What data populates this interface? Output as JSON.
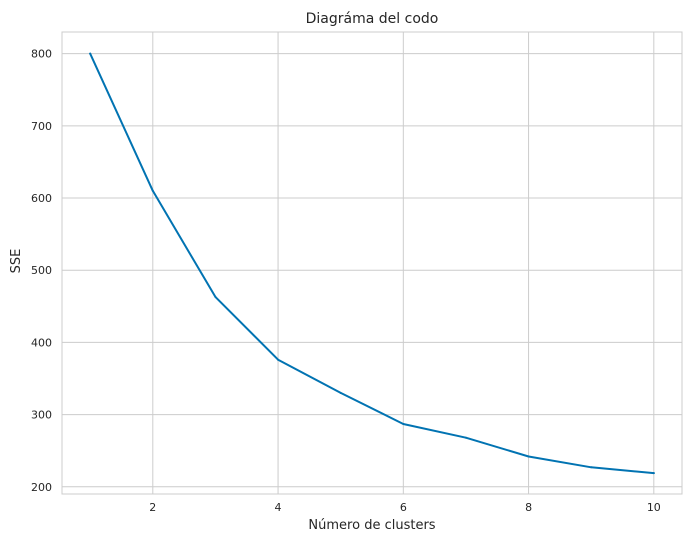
{
  "chart_data": {
    "type": "line",
    "title": "Diagráma del codo",
    "xlabel": "Número de clusters",
    "ylabel": "SSE",
    "x": [
      1,
      2,
      3,
      4,
      5,
      6,
      7,
      8,
      9,
      10
    ],
    "series": [
      {
        "values": [
          800,
          610,
          463,
          376,
          330,
          287,
          268,
          242,
          227,
          219
        ]
      }
    ],
    "xlim": [
      0.55,
      10.45
    ],
    "ylim": [
      190,
      830
    ],
    "xticks": [
      2,
      4,
      6,
      8,
      10
    ],
    "yticks": [
      200,
      300,
      400,
      500,
      600,
      700,
      800
    ],
    "grid": true,
    "colors": {
      "line": "#0173b2",
      "grid": "#cccccc",
      "text": "#262626",
      "background": "#ffffff"
    }
  }
}
